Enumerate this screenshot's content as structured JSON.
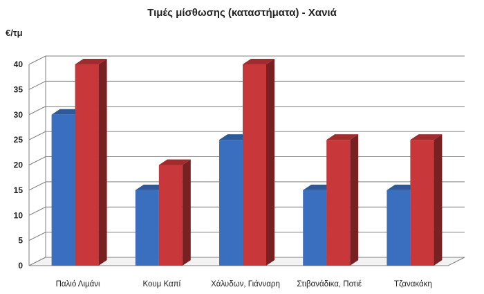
{
  "chart_data": {
    "type": "bar",
    "title": "Τιμές μίσθωσης (καταστήματα) - Χανιά",
    "ylabel": "€/τμ",
    "xlabel": "",
    "categories": [
      "Παλιό Λιμάνι",
      "Κουμ Καπί",
      "Χάλυδων, Γιάνναρη",
      "Στιβανάδικα, Ποτιέ",
      "Τζανακάκη"
    ],
    "series": [
      {
        "values": [
          30,
          15,
          25,
          15,
          15
        ],
        "color": "#3a6fbf"
      },
      {
        "values": [
          40,
          20,
          40,
          25,
          25
        ],
        "color": "#c8373a"
      }
    ],
    "ylim": [
      0,
      40
    ],
    "yticks": [
      0,
      5,
      10,
      15,
      20,
      25,
      30,
      35,
      40
    ],
    "grid": true,
    "legend": "none",
    "style": "3d-column"
  }
}
